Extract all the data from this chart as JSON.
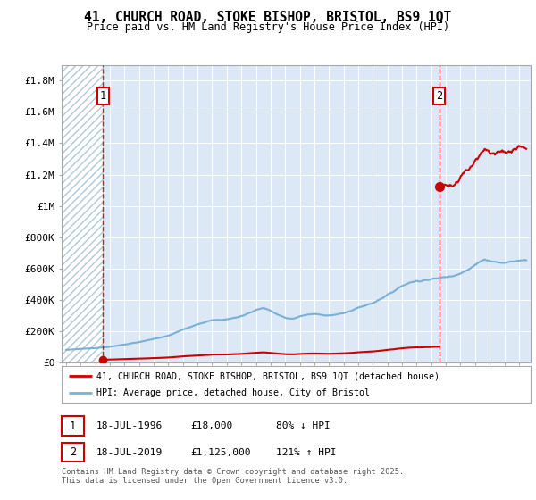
{
  "title": "41, CHURCH ROAD, STOKE BISHOP, BRISTOL, BS9 1QT",
  "subtitle": "Price paid vs. HM Land Registry's House Price Index (HPI)",
  "ylim": [
    0,
    1900000
  ],
  "yticks": [
    0,
    200000,
    400000,
    600000,
    800000,
    1000000,
    1200000,
    1400000,
    1600000,
    1800000
  ],
  "ytick_labels": [
    "£0",
    "£200K",
    "£400K",
    "£600K",
    "£800K",
    "£1M",
    "£1.2M",
    "£1.4M",
    "£1.6M",
    "£1.8M"
  ],
  "xlim_left": 1993.7,
  "xlim_right": 2025.8,
  "sale1_year": 1996.54,
  "sale1_price": 18000,
  "sale2_year": 2019.54,
  "sale2_price": 1125000,
  "hpi_color": "#7ab0d4",
  "price_color": "#cc0000",
  "plot_bg_color": "#dce8f5",
  "hatch_bg_color": "#ffffff",
  "hatch_edge_color": "#b0c8dd",
  "grid_color": "#ffffff",
  "legend_line1": "41, CHURCH ROAD, STOKE BISHOP, BRISTOL, BS9 1QT (detached house)",
  "legend_line2": "HPI: Average price, detached house, City of Bristol",
  "table_row1": [
    "1",
    "18-JUL-1996",
    "£18,000",
    "80% ↓ HPI"
  ],
  "table_row2": [
    "2",
    "18-JUL-2019",
    "£1,125,000",
    "121% ↑ HPI"
  ],
  "footnote_line1": "Contains HM Land Registry data © Crown copyright and database right 2025.",
  "footnote_line2": "This data is licensed under the Open Government Licence v3.0."
}
